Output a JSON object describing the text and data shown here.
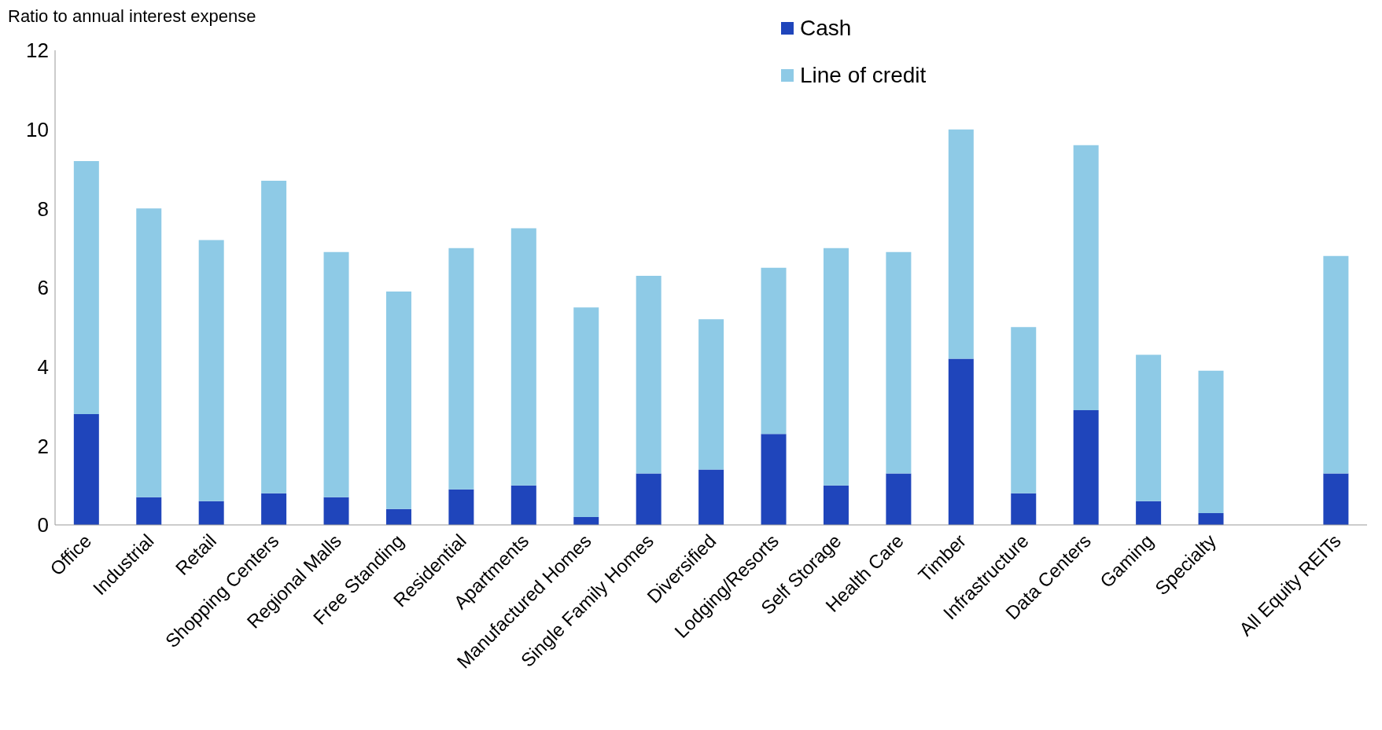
{
  "chart_data": {
    "type": "bar",
    "stacked": true,
    "ylabel": "Ratio to annual interest expense",
    "categories": [
      "Office",
      "Industrial",
      "Retail",
      "Shopping Centers",
      "Regional Malls",
      "Free Standing",
      "Residential",
      "Apartments",
      "Manufactured Homes",
      "Single Family Homes",
      "Diversified",
      "Lodging/Resorts",
      "Self Storage",
      "Health Care",
      "Timber",
      "Infrastructure",
      "Data Centers",
      "Gaming",
      "Specialty",
      null,
      "All Equity REITs"
    ],
    "series": [
      {
        "name": "Cash",
        "color": "#1f45bb",
        "values": [
          2.8,
          0.7,
          0.6,
          0.8,
          0.7,
          0.4,
          0.9,
          1.0,
          0.2,
          1.3,
          1.4,
          2.3,
          1.0,
          1.3,
          4.2,
          0.8,
          2.9,
          0.6,
          0.3,
          null,
          1.3
        ]
      },
      {
        "name": "Line of credit",
        "color": "#8ecae6",
        "values": [
          6.4,
          7.3,
          6.6,
          7.9,
          6.2,
          5.5,
          6.1,
          6.5,
          5.3,
          5.0,
          3.8,
          4.2,
          6.0,
          5.6,
          5.8,
          4.2,
          6.7,
          3.7,
          3.6,
          null,
          5.5
        ]
      }
    ],
    "ylim": [
      0,
      12
    ],
    "yticks": [
      0,
      2,
      4,
      6,
      8,
      10,
      12
    ],
    "grid": false,
    "legend": "top"
  }
}
